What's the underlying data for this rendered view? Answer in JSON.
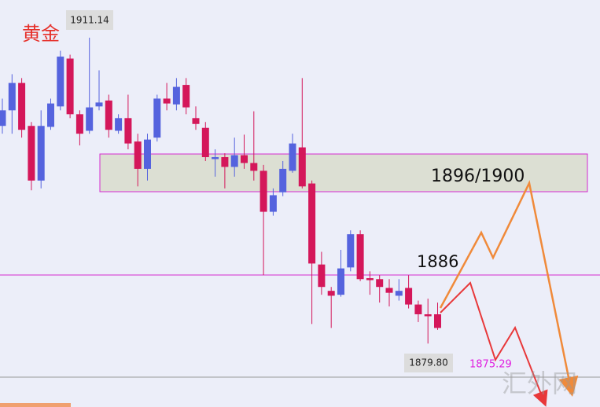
{
  "chart_data": {
    "type": "candlestick",
    "title": "黄金",
    "ylim": [
      1873.3,
      1915.0
    ],
    "up_color": "#5563de",
    "down_color": "#d4175a",
    "open": [
      1902.1,
      1903.7,
      1906.5,
      1902.1,
      1896.5,
      1902.0,
      1904.1,
      1909.0,
      1903.3,
      1901.6,
      1904.1,
      1904.7,
      1901.6,
      1902.9,
      1900.5,
      1897.7,
      1900.9,
      1904.9,
      1904.3,
      1906.3,
      1902.9,
      1901.9,
      1898.7,
      1898.9,
      1897.9,
      1899.1,
      1898.3,
      1897.5,
      1893.3,
      1895.3,
      1897.5,
      1899.9,
      1896.2,
      1887.9,
      1885.2,
      1884.8,
      1887.6,
      1891.0,
      1886.5,
      1886.4,
      1885.5,
      1884.7,
      1885.5,
      1883.8,
      1882.8,
      1882.8
    ],
    "high": [
      1904.9,
      1907.4,
      1907.0,
      1902.5,
      1903.7,
      1904.9,
      1909.8,
      1909.4,
      1903.7,
      1911.14,
      1907.8,
      1905.3,
      1903.3,
      1905.3,
      1901.3,
      1901.3,
      1905.3,
      1906.5,
      1907.0,
      1907.0,
      1904.1,
      1902.5,
      1899.7,
      1899.3,
      1900.9,
      1901.2,
      1903.6,
      1898.1,
      1895.7,
      1898.5,
      1901.3,
      1907.0,
      1896.5,
      1889.2,
      1885.6,
      1889.4,
      1891.4,
      1891.4,
      1887.2,
      1886.8,
      1886.4,
      1886.4,
      1886.8,
      1884.2,
      1884.4,
      1884.0
    ],
    "low": [
      1901.3,
      1901.3,
      1900.9,
      1895.5,
      1895.7,
      1901.7,
      1903.7,
      1902.9,
      1900.1,
      1901.3,
      1903.7,
      1900.9,
      1901.3,
      1899.7,
      1895.9,
      1896.5,
      1900.5,
      1903.7,
      1903.7,
      1903.3,
      1901.7,
      1898.5,
      1896.9,
      1895.7,
      1896.9,
      1897.7,
      1896.5,
      1886.8,
      1892.9,
      1894.9,
      1897.3,
      1895.7,
      1881.8,
      1884.8,
      1881.4,
      1884.6,
      1887.2,
      1886.2,
      1884.8,
      1884.0,
      1883.6,
      1884.2,
      1883.4,
      1882.0,
      1879.8,
      1881.2
    ],
    "close": [
      1903.7,
      1906.5,
      1901.7,
      1896.5,
      1902.1,
      1904.4,
      1909.2,
      1903.3,
      1901.3,
      1904.0,
      1904.5,
      1901.7,
      1902.9,
      1900.3,
      1897.7,
      1900.7,
      1904.9,
      1904.4,
      1906.1,
      1904.0,
      1902.3,
      1898.9,
      1898.9,
      1897.9,
      1899.1,
      1898.3,
      1897.5,
      1893.3,
      1895.0,
      1897.7,
      1900.3,
      1895.9,
      1888.0,
      1885.6,
      1884.7,
      1887.5,
      1891.0,
      1886.4,
      1886.3,
      1885.6,
      1885.0,
      1885.2,
      1883.8,
      1882.8,
      1882.6,
      1881.4
    ],
    "high_label": "1911.14",
    "low_label": "1879.80",
    "zone_label": "1896/1900",
    "level_label": "1886",
    "target_label": "1875.29",
    "watermark": "汇外网"
  }
}
